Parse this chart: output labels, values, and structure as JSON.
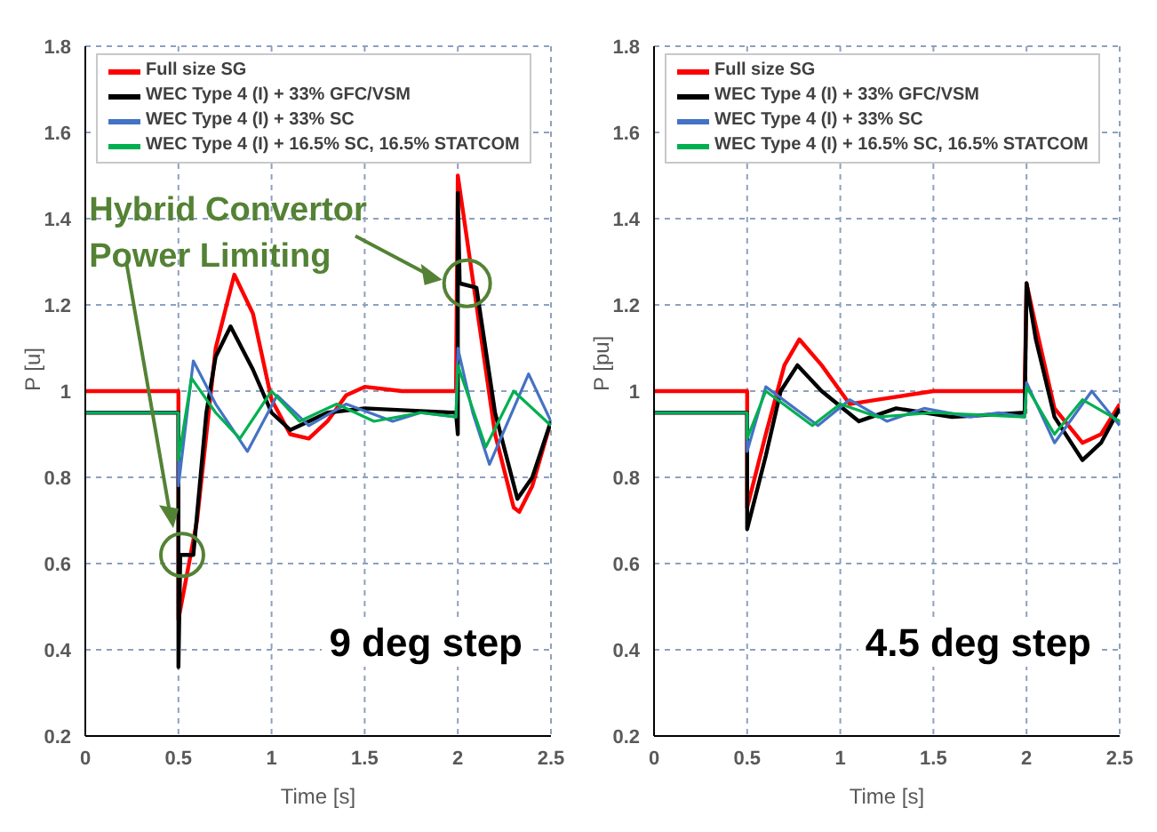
{
  "chart_data": [
    {
      "type": "line",
      "xlabel": "Time [s]",
      "ylabel": "P [u]",
      "xlim": [
        0,
        2.5
      ],
      "xticks": [
        0,
        0.5,
        1,
        1.5,
        2,
        2.5
      ],
      "ylim": [
        0.2,
        1.8
      ],
      "yticks": [
        0.2,
        0.4,
        0.6,
        0.8,
        1,
        1.2,
        1.4,
        1.6,
        1.8
      ],
      "grid": true,
      "legend": "top",
      "marker": "none",
      "line_style": "solid",
      "annotations": [
        "Hybrid Convertor Power Limiting",
        "9 deg step"
      ],
      "series": [
        {
          "name": "Full size SG",
          "color": "#ff0000",
          "x": [
            0,
            0.5,
            0.5,
            0.6,
            0.7,
            0.8,
            0.9,
            1.0,
            1.1,
            1.2,
            1.3,
            1.4,
            1.5,
            1.7,
            1.99,
            2.0,
            2.1,
            2.2,
            2.3,
            2.33,
            2.4,
            2.5
          ],
          "values": [
            1,
            1,
            0.47,
            0.7,
            1.1,
            1.27,
            1.18,
            0.98,
            0.9,
            0.89,
            0.93,
            0.99,
            1.01,
            1.0,
            1.0,
            1.5,
            1.2,
            0.9,
            0.73,
            0.72,
            0.78,
            0.93
          ]
        },
        {
          "name": "WEC Type 4 (I) + 33% GFC/VSM",
          "color": "#000000",
          "x": [
            0,
            0.5,
            0.5,
            0.51,
            0.58,
            0.65,
            0.7,
            0.78,
            0.9,
            1.0,
            1.1,
            1.3,
            1.5,
            1.99,
            2.0,
            2.0,
            2.01,
            2.1,
            2.2,
            2.32,
            2.4,
            2.5
          ],
          "values": [
            0.95,
            0.95,
            0.36,
            0.62,
            0.62,
            0.95,
            1.08,
            1.15,
            1.05,
            0.95,
            0.91,
            0.95,
            0.96,
            0.95,
            0.9,
            1.46,
            1.25,
            1.24,
            0.95,
            0.75,
            0.8,
            0.93
          ]
        },
        {
          "name": "WEC Type 4 (I) + 33% SC",
          "color": "#4472c4",
          "x": [
            0,
            0.5,
            0.5,
            0.58,
            0.7,
            0.87,
            1.03,
            1.2,
            1.4,
            1.65,
            1.8,
            1.99,
            2.0,
            2.08,
            2.17,
            2.38,
            2.5
          ],
          "values": [
            0.95,
            0.95,
            0.78,
            1.07,
            0.97,
            0.86,
            0.99,
            0.92,
            0.97,
            0.93,
            0.95,
            0.94,
            1.1,
            0.95,
            0.83,
            1.04,
            0.93
          ]
        },
        {
          "name": "WEC Type 4 (I) + 16.5% SC, 16.5% STATCOM",
          "color": "#00b050",
          "x": [
            0,
            0.5,
            0.5,
            0.57,
            0.7,
            0.83,
            1.0,
            1.15,
            1.35,
            1.55,
            1.8,
            1.99,
            2.0,
            2.15,
            2.3,
            2.5
          ],
          "values": [
            0.95,
            0.95,
            0.84,
            1.03,
            0.95,
            0.89,
            1.0,
            0.93,
            0.97,
            0.93,
            0.95,
            0.94,
            1.06,
            0.87,
            1.0,
            0.92
          ]
        }
      ]
    },
    {
      "type": "line",
      "xlabel": "Time [s]",
      "ylabel": "P [pu]",
      "xlim": [
        0,
        2.5
      ],
      "xticks": [
        0,
        0.5,
        1,
        1.5,
        2,
        2.5
      ],
      "ylim": [
        0.2,
        1.8
      ],
      "yticks": [
        0.2,
        0.4,
        0.6,
        0.8,
        1,
        1.2,
        1.4,
        1.6,
        1.8
      ],
      "grid": true,
      "legend": "top",
      "marker": "none",
      "line_style": "solid",
      "annotations": [
        "4.5 deg step"
      ],
      "series": [
        {
          "name": "Full size SG",
          "color": "#ff0000",
          "x": [
            0,
            0.5,
            0.5,
            0.6,
            0.7,
            0.78,
            0.9,
            1.05,
            1.2,
            1.5,
            1.99,
            2.0,
            2.05,
            2.15,
            2.3,
            2.4,
            2.5
          ],
          "values": [
            1,
            1,
            0.73,
            0.9,
            1.06,
            1.12,
            1.06,
            0.97,
            0.98,
            1.0,
            1.0,
            1.25,
            1.15,
            0.96,
            0.88,
            0.9,
            0.97
          ]
        },
        {
          "name": "WEC Type 4 (I) + 33% GFC/VSM",
          "color": "#000000",
          "x": [
            0,
            0.5,
            0.5,
            0.6,
            0.68,
            0.77,
            0.9,
            1.1,
            1.3,
            1.6,
            1.99,
            2.0,
            2.05,
            2.15,
            2.3,
            2.4,
            2.5
          ],
          "values": [
            0.95,
            0.95,
            0.68,
            0.85,
            1.0,
            1.06,
            1.0,
            0.93,
            0.96,
            0.94,
            0.95,
            1.25,
            1.12,
            0.94,
            0.84,
            0.88,
            0.96
          ]
        },
        {
          "name": "WEC Type 4 (I) + 33% SC",
          "color": "#4472c4",
          "x": [
            0,
            0.5,
            0.5,
            0.6,
            0.88,
            1.05,
            1.25,
            1.45,
            1.7,
            1.85,
            1.99,
            2.0,
            2.15,
            2.35,
            2.5
          ],
          "values": [
            0.95,
            0.95,
            0.86,
            1.01,
            0.92,
            0.98,
            0.93,
            0.96,
            0.94,
            0.95,
            0.94,
            1.02,
            0.88,
            1.0,
            0.92
          ]
        },
        {
          "name": "WEC Type 4 (I) + 16.5% SC, 16.5% STATCOM",
          "color": "#00b050",
          "x": [
            0,
            0.5,
            0.5,
            0.6,
            0.85,
            1.0,
            1.2,
            1.5,
            1.99,
            2.0,
            2.15,
            2.3,
            2.5
          ],
          "values": [
            0.95,
            0.95,
            0.89,
            1.0,
            0.92,
            0.97,
            0.94,
            0.95,
            0.94,
            1.01,
            0.9,
            0.98,
            0.93
          ]
        }
      ]
    }
  ]
}
